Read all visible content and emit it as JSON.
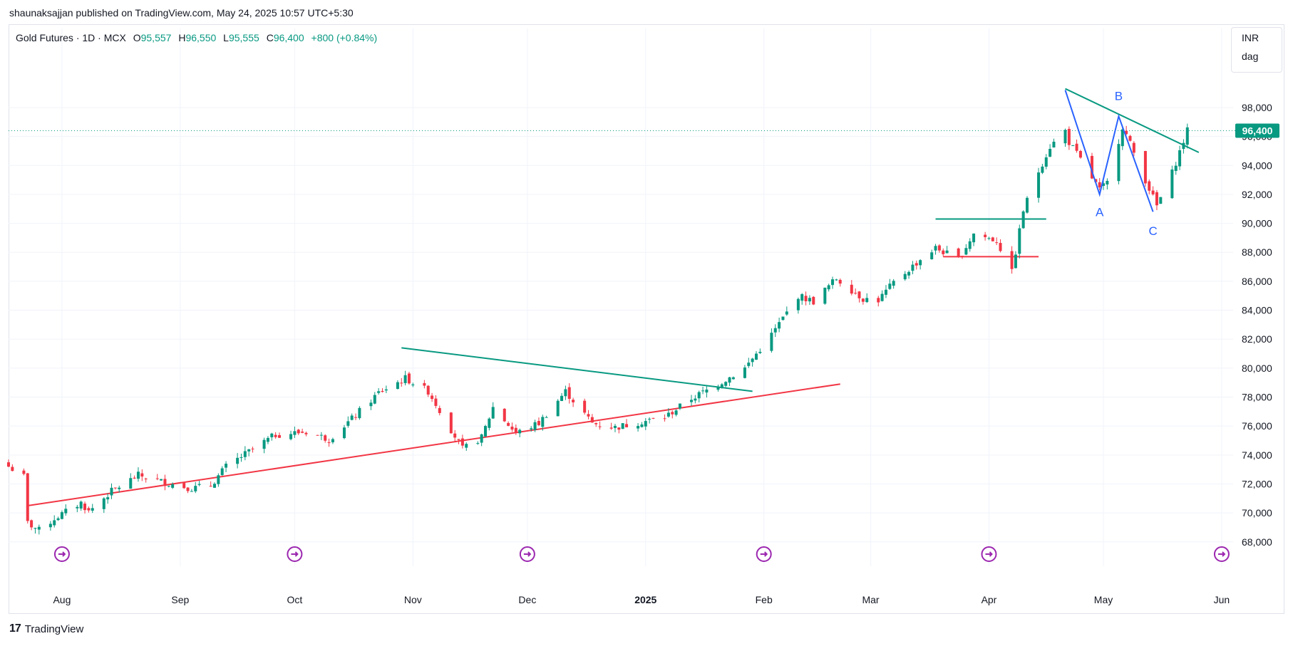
{
  "header": {
    "published_text": "shaunaksajjan published on TradingView.com, May 24, 2025 10:57 UTC+5:30"
  },
  "legend": {
    "symbol": "Gold Futures · 1D · MCX",
    "open_label": "O",
    "open_value": "95,557",
    "high_label": "H",
    "high_value": "96,550",
    "low_label": "L",
    "low_value": "95,555",
    "close_label": "C",
    "close_value": "96,400",
    "change": "+800 (+0.84%)"
  },
  "currency_box": {
    "currency": "INR",
    "unit": "dag"
  },
  "footer": {
    "brand": "TradingView"
  },
  "colors": {
    "up": "#089981",
    "down": "#F23645",
    "wave": "#2962FF",
    "grid": "#F0F3FA"
  },
  "chart_data": {
    "type": "candlestick",
    "title": "Gold Futures · 1D · MCX",
    "y_ticks": [
      68000,
      70000,
      72000,
      74000,
      76000,
      78000,
      80000,
      82000,
      84000,
      86000,
      88000,
      90000,
      92000,
      94000,
      96000,
      98000
    ],
    "y_tick_labels": [
      "68,000",
      "70,000",
      "72,000",
      "74,000",
      "76,000",
      "78,000",
      "80,000",
      "82,000",
      "84,000",
      "86,000",
      "88,000",
      "90,000",
      "92,000",
      "94,000",
      "96,000",
      "98,000"
    ],
    "ylim": [
      67300,
      101000
    ],
    "x_labels": [
      {
        "date": "2024-08-01",
        "label": "Aug"
      },
      {
        "date": "2024-09-01",
        "label": "Sep"
      },
      {
        "date": "2024-10-01",
        "label": "Oct"
      },
      {
        "date": "2024-11-01",
        "label": "Nov"
      },
      {
        "date": "2024-12-01",
        "label": "Dec"
      },
      {
        "date": "2025-01-01",
        "label": "2025"
      },
      {
        "date": "2025-02-01",
        "label": "Feb"
      },
      {
        "date": "2025-03-01",
        "label": "Mar"
      },
      {
        "date": "2025-04-01",
        "label": "Apr"
      },
      {
        "date": "2025-05-01",
        "label": "May"
      },
      {
        "date": "2025-06-01",
        "label": "Jun"
      }
    ],
    "xlim": [
      "2024-07-18",
      "2025-06-04"
    ],
    "last_price": 96400,
    "last_price_label": "96,400",
    "event_markers": [
      "2024-08-01",
      "2024-10-01",
      "2024-12-01",
      "2025-02-01",
      "2025-04-01",
      "2025-06-01"
    ],
    "close_path": [
      {
        "date": "2024-07-18",
        "close": 73200
      },
      {
        "date": "2024-07-22",
        "close": 72500
      },
      {
        "date": "2024-07-23",
        "close": 69300
      },
      {
        "date": "2024-07-26",
        "close": 68800
      },
      {
        "date": "2024-07-30",
        "close": 69600
      },
      {
        "date": "2024-08-06",
        "close": 70700
      },
      {
        "date": "2024-08-08",
        "close": 70100
      },
      {
        "date": "2024-08-14",
        "close": 71500
      },
      {
        "date": "2024-08-21",
        "close": 72600
      },
      {
        "date": "2024-08-28",
        "close": 72100
      },
      {
        "date": "2024-09-04",
        "close": 71700
      },
      {
        "date": "2024-09-09",
        "close": 71900
      },
      {
        "date": "2024-09-13",
        "close": 73200
      },
      {
        "date": "2024-09-20",
        "close": 74400
      },
      {
        "date": "2024-09-26",
        "close": 75400
      },
      {
        "date": "2024-10-04",
        "close": 75600
      },
      {
        "date": "2024-10-10",
        "close": 75100
      },
      {
        "date": "2024-10-16",
        "close": 76500
      },
      {
        "date": "2024-10-23",
        "close": 78300
      },
      {
        "date": "2024-10-30",
        "close": 79300
      },
      {
        "date": "2024-11-05",
        "close": 78400
      },
      {
        "date": "2024-11-08",
        "close": 77100
      },
      {
        "date": "2024-11-14",
        "close": 74400
      },
      {
        "date": "2024-11-19",
        "close": 75200
      },
      {
        "date": "2024-11-22",
        "close": 77300
      },
      {
        "date": "2024-11-28",
        "close": 75500
      },
      {
        "date": "2024-12-04",
        "close": 76200
      },
      {
        "date": "2024-12-11",
        "close": 78400
      },
      {
        "date": "2024-12-18",
        "close": 76200
      },
      {
        "date": "2024-12-24",
        "close": 75900
      },
      {
        "date": "2024-12-31",
        "close": 76300
      },
      {
        "date": "2025-01-06",
        "close": 76600
      },
      {
        "date": "2025-01-13",
        "close": 77900
      },
      {
        "date": "2025-01-20",
        "close": 78900
      },
      {
        "date": "2025-01-27",
        "close": 80000
      },
      {
        "date": "2025-02-03",
        "close": 82300
      },
      {
        "date": "2025-02-10",
        "close": 85000
      },
      {
        "date": "2025-02-14",
        "close": 84600
      },
      {
        "date": "2025-02-20",
        "close": 86200
      },
      {
        "date": "2025-02-27",
        "close": 84800
      },
      {
        "date": "2025-03-03",
        "close": 84700
      },
      {
        "date": "2025-03-07",
        "close": 85900
      },
      {
        "date": "2025-03-14",
        "close": 87500
      },
      {
        "date": "2025-03-18",
        "close": 88300
      },
      {
        "date": "2025-03-24",
        "close": 87500
      },
      {
        "date": "2025-03-28",
        "close": 89300
      },
      {
        "date": "2025-04-03",
        "close": 88800
      },
      {
        "date": "2025-04-07",
        "close": 86600
      },
      {
        "date": "2025-04-10",
        "close": 90900
      },
      {
        "date": "2025-04-14",
        "close": 93600
      },
      {
        "date": "2025-04-17",
        "close": 95300
      },
      {
        "date": "2025-04-21",
        "close": 96400
      },
      {
        "date": "2025-04-22",
        "close": 95600
      },
      {
        "date": "2025-04-25",
        "close": 94400
      },
      {
        "date": "2025-04-30",
        "close": 92300
      },
      {
        "date": "2025-05-02",
        "close": 92800
      },
      {
        "date": "2025-05-06",
        "close": 96700
      },
      {
        "date": "2025-05-08",
        "close": 95500
      },
      {
        "date": "2025-05-12",
        "close": 93000
      },
      {
        "date": "2025-05-15",
        "close": 91200
      },
      {
        "date": "2025-05-19",
        "close": 93500
      },
      {
        "date": "2025-05-23",
        "close": 96400
      }
    ],
    "trendlines": [
      {
        "color": "#F23645",
        "from": {
          "date": "2024-07-23",
          "value": 70500
        },
        "to": {
          "date": "2025-02-21",
          "value": 78900
        }
      },
      {
        "color": "#089981",
        "from": {
          "date": "2024-10-29",
          "value": 81400
        },
        "to": {
          "date": "2025-01-29",
          "value": 78400
        }
      },
      {
        "color": "#089981",
        "from": {
          "date": "2025-03-18",
          "value": 90300
        },
        "to": {
          "date": "2025-04-16",
          "value": 90300
        }
      },
      {
        "color": "#F23645",
        "from": {
          "date": "2025-03-20",
          "value": 87700
        },
        "to": {
          "date": "2025-04-14",
          "value": 87700
        }
      },
      {
        "color": "#089981",
        "from": {
          "date": "2025-04-21",
          "value": 99300
        },
        "to": {
          "date": "2025-05-26",
          "value": 94900
        }
      }
    ],
    "abc_wave": {
      "points": [
        {
          "date": "2025-04-21",
          "value": 99200
        },
        {
          "date": "2025-04-30",
          "value": 92000
        },
        {
          "date": "2025-05-05",
          "value": 97400
        },
        {
          "date": "2025-05-14",
          "value": 90800
        }
      ],
      "labels": [
        {
          "text": "A",
          "date": "2025-04-30",
          "value": 90800
        },
        {
          "text": "B",
          "date": "2025-05-05",
          "value": 98800
        },
        {
          "text": "C",
          "date": "2025-05-14",
          "value": 89500
        }
      ]
    }
  }
}
